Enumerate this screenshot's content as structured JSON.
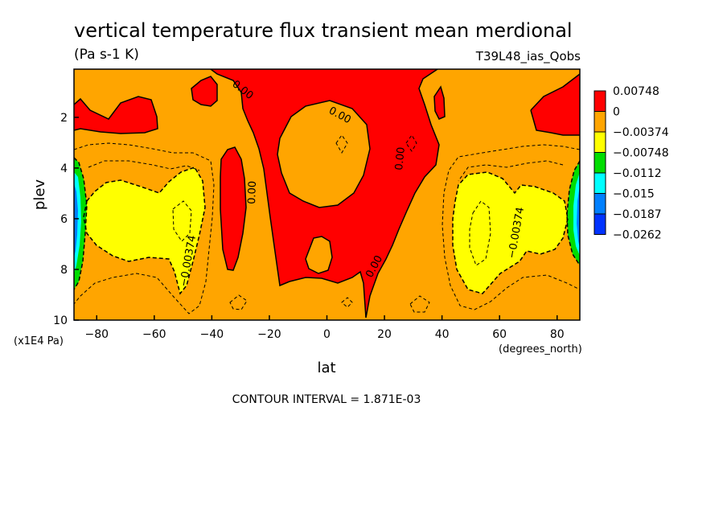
{
  "title": "vertical temperature flux transient mean merdional",
  "units": "(Pa s-1 K)",
  "run_label": "T39L48_ias_Qobs",
  "contour_interval_text": "CONTOUR INTERVAL = 1.871E-03",
  "colors": {
    "red": "#ff0000",
    "orange": "#ffa500",
    "yellow": "#ffff00",
    "green": "#00dd00",
    "cyan": "#00ffff",
    "blue": "#0080ff",
    "darkblue": "#0033ff"
  },
  "chart_data": {
    "type": "heatmap",
    "title": "vertical temperature flux transient mean merdional",
    "xlabel": "lat",
    "x_units": "(degrees_north)",
    "ylabel": "plev",
    "y_units": "(x1E4 Pa)",
    "xlim": [
      -87.9,
      87.9
    ],
    "ylim": [
      10,
      0.1
    ],
    "x_ticks": [
      -80,
      -60,
      -40,
      -20,
      0,
      20,
      40,
      60,
      80
    ],
    "x_tick_labels": [
      "−80",
      "−60",
      "−40",
      "−20",
      "0",
      "20",
      "40",
      "60",
      "80"
    ],
    "y_ticks": [
      2,
      4,
      6,
      8,
      10
    ],
    "y_tick_labels": [
      "2",
      "4",
      "6",
      "8",
      "10"
    ],
    "legend": {
      "placement": "right",
      "levels": [
        "0.00748",
        "0",
        "−0.00374",
        "−0.00748",
        "−0.0112",
        "−0.015",
        "−0.0187",
        "−0.0262"
      ],
      "colors": [
        "#ff0000",
        "#ffa500",
        "#ffff00",
        "#00dd00",
        "#00ffff",
        "#0080ff",
        "#0033ff"
      ]
    },
    "contour_labels": [
      {
        "text": "0.00",
        "lat": -30,
        "plev": 1.1
      },
      {
        "text": "0.00",
        "lat": 5,
        "plev": 2.0
      },
      {
        "text": "0.00",
        "lat": -29,
        "plev": 4.8
      },
      {
        "text": "0.00",
        "lat": 25,
        "plev": 3.6
      },
      {
        "text": "0.00",
        "lat": 17,
        "plev": 8.0
      },
      {
        "text": "−0.00374",
        "lat": -49,
        "plev": 7.8
      },
      {
        "text": "−0.00374",
        "lat": 66,
        "plev": 6.2
      }
    ]
  }
}
